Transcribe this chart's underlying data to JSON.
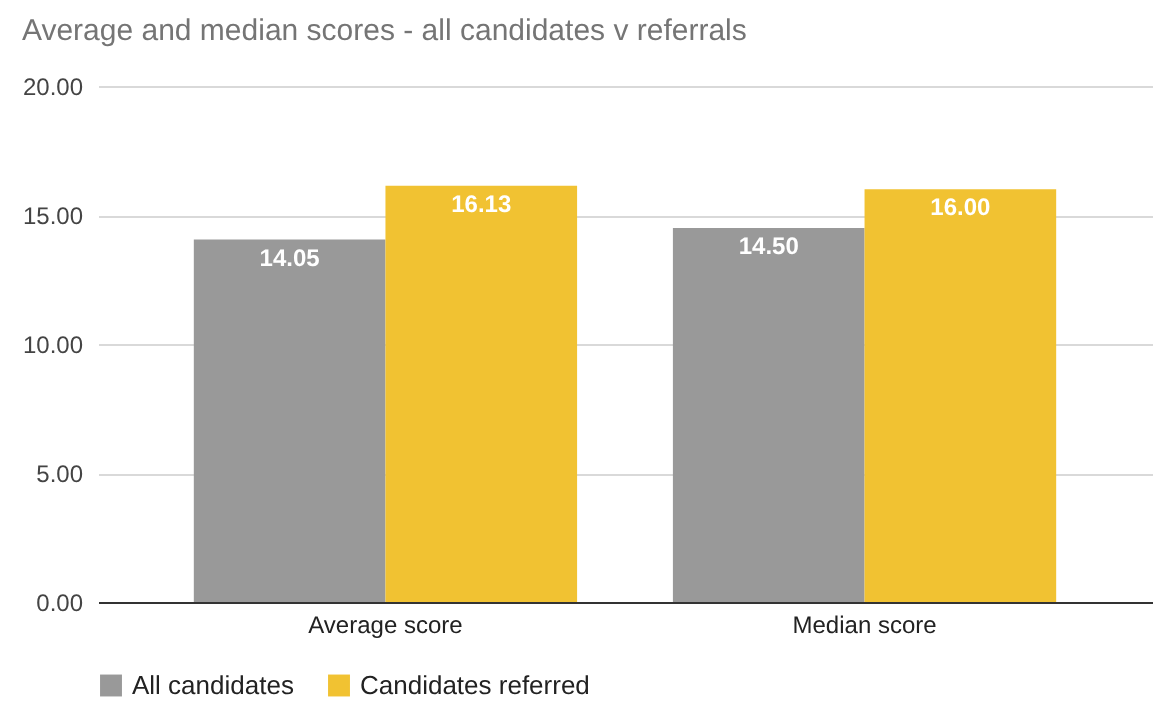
{
  "chart_data": {
    "type": "bar",
    "title": "Average and median scores - all candidates v referrals",
    "categories": [
      "Average score",
      "Median score"
    ],
    "series": [
      {
        "name": "All candidates",
        "color": "#999999",
        "values": [
          14.05,
          14.5
        ],
        "value_labels": [
          "14.05",
          "14.50"
        ]
      },
      {
        "name": "Candidates referred",
        "color": "#f1c232",
        "values": [
          16.13,
          16.0
        ],
        "value_labels": [
          "16.13",
          "16.00"
        ]
      }
    ],
    "ylim": [
      0,
      20
    ],
    "yticks": [
      {
        "value": 0,
        "label": "0.00"
      },
      {
        "value": 5,
        "label": "5.00"
      },
      {
        "value": 10,
        "label": "10.00"
      },
      {
        "value": 15,
        "label": "15.00"
      },
      {
        "value": 20,
        "label": "20.00"
      }
    ],
    "grid": "y",
    "legend": "bottom"
  }
}
